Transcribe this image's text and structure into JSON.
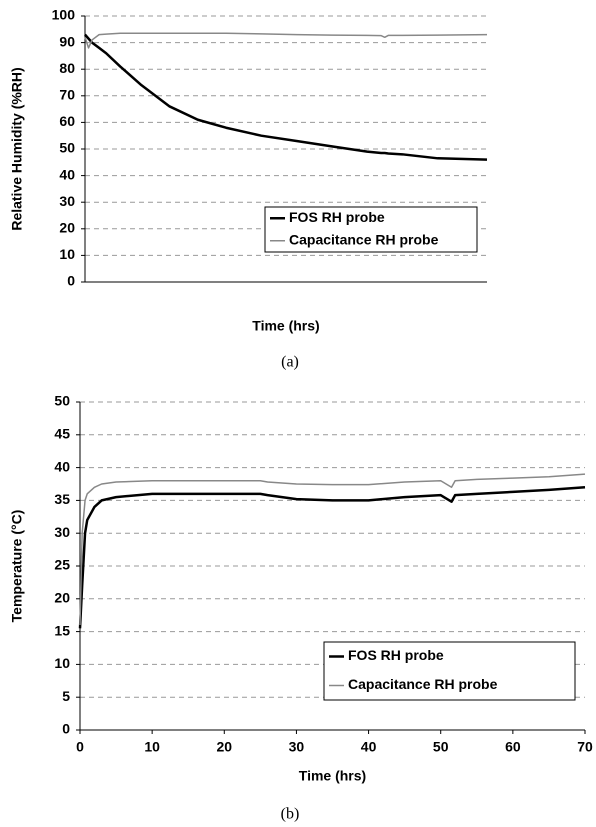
{
  "chart_data": [
    {
      "type": "line",
      "caption": "(a)",
      "xlabel": "Time (hrs)",
      "ylabel": "Relative Humidity (%RH)",
      "x": [
        0,
        0.5,
        1,
        2,
        3,
        5,
        8,
        12,
        16,
        20,
        25,
        30,
        35,
        40,
        42,
        42.5,
        43,
        45,
        50,
        57
      ],
      "series": [
        {
          "name": "FOS RH probe",
          "color": "#000000",
          "values": [
            93,
            91.5,
            90,
            88,
            86,
            81,
            74,
            66,
            61,
            58,
            55,
            53,
            51,
            49,
            48.5,
            48.5,
            48.3,
            48,
            46.5,
            46
          ]
        },
        {
          "name": "Capacitance RH probe",
          "color": "#888888",
          "values": [
            92,
            88,
            91,
            93,
            93.2,
            93.5,
            93.5,
            93.5,
            93.5,
            93.5,
            93.3,
            93,
            92.8,
            92.7,
            92.6,
            92,
            92.7,
            92.7,
            92.8,
            93
          ]
        }
      ],
      "xlim": [
        0,
        57
      ],
      "ylim": [
        0,
        100
      ],
      "yticks": [
        0,
        10,
        20,
        30,
        40,
        50,
        60,
        70,
        80,
        90,
        100
      ],
      "grid": true,
      "legend": "lower right"
    },
    {
      "type": "line",
      "caption": "(b)",
      "xlabel": "Time (hrs)",
      "ylabel": "Temperature (°C)",
      "x": [
        0,
        0.3,
        0.7,
        1,
        2,
        3,
        5,
        10,
        15,
        20,
        25,
        26,
        30,
        35,
        40,
        45,
        50,
        51.5,
        52,
        55,
        60,
        65,
        70
      ],
      "series": [
        {
          "name": "FOS RH probe",
          "color": "#000000",
          "values": [
            15.5,
            22,
            30,
            32,
            34,
            35,
            35.5,
            36,
            36,
            36,
            36,
            35.8,
            35.2,
            35,
            35,
            35.5,
            35.8,
            34.8,
            35.8,
            36,
            36.3,
            36.6,
            37
          ]
        },
        {
          "name": "Capacitance RH probe",
          "color": "#888888",
          "values": [
            16,
            30,
            35,
            36,
            37,
            37.5,
            37.8,
            38,
            38,
            38,
            38,
            37.8,
            37.5,
            37.4,
            37.4,
            37.8,
            38,
            37,
            38,
            38.2,
            38.4,
            38.6,
            39
          ]
        }
      ],
      "xlim": [
        0,
        70
      ],
      "ylim": [
        0,
        50
      ],
      "xticks": [
        0,
        10,
        20,
        30,
        40,
        50,
        60,
        70
      ],
      "yticks": [
        0,
        5,
        10,
        15,
        20,
        25,
        30,
        35,
        40,
        45,
        50
      ],
      "grid": true,
      "legend": "lower right"
    }
  ]
}
